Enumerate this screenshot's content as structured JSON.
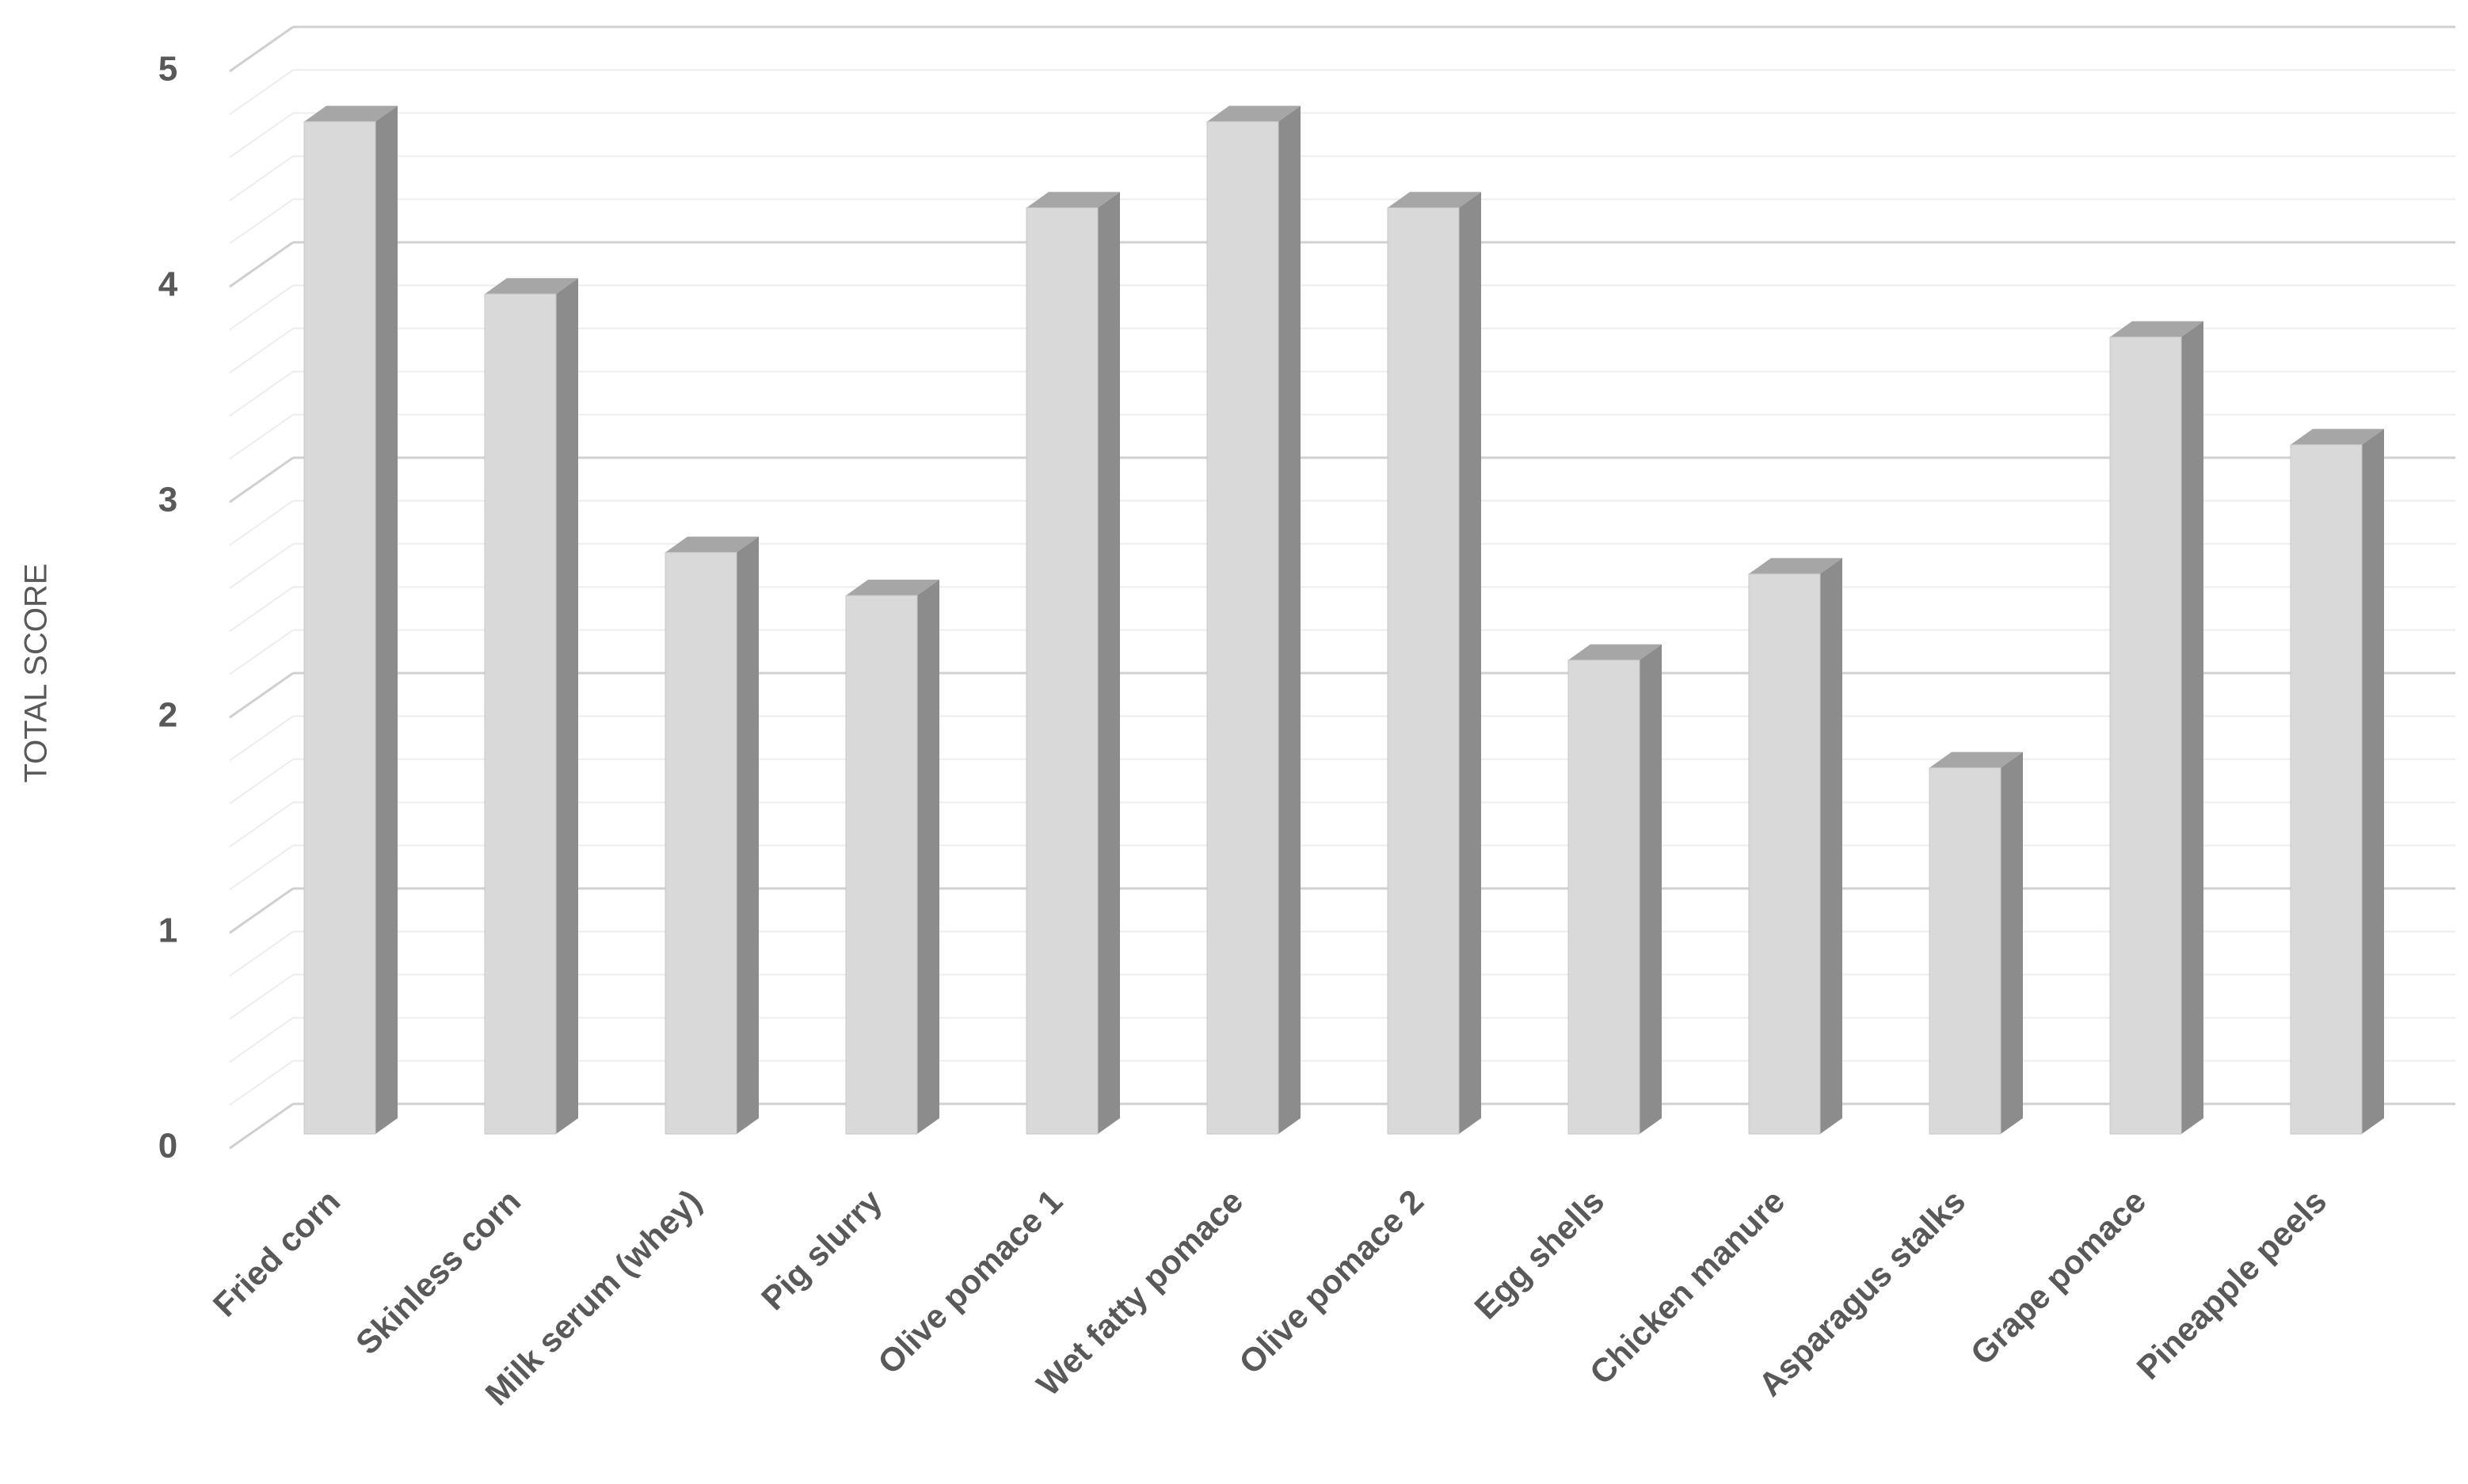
{
  "chart_data": {
    "type": "bar3d",
    "y_label": "TOTAL SCORE",
    "categories": [
      "Fried corn",
      "Skinless corn",
      "Milk serum (whey)",
      "Pig slurry",
      "Olive pomace 1",
      "Wet fatty pomace",
      "Olive pomace 2",
      "Egg shells",
      "Chicken manure",
      "Asparagus stalks",
      "Grape pomace",
      "Pineapple peels"
    ],
    "values": [
      4.7,
      3.9,
      2.7,
      2.5,
      4.3,
      4.7,
      4.3,
      2.2,
      2.6,
      1.7,
      3.7,
      3.2
    ],
    "color": "#d9d9d9",
    "ylim": [
      0,
      5
    ],
    "yticks": [
      0,
      1,
      2,
      3,
      4,
      5
    ],
    "minor_yticks": [
      0.2,
      0.4,
      0.6,
      0.8,
      1.2,
      1.4,
      1.6,
      1.8,
      2.2,
      2.4,
      2.6,
      2.8,
      3.2,
      3.4,
      3.6,
      3.8,
      4.2,
      4.4,
      4.6,
      4.8
    ],
    "grid": true
  }
}
